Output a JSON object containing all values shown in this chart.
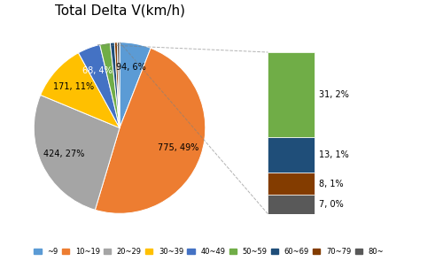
{
  "title": "Total Delta V(km/h)",
  "categories": [
    "~9",
    "10~19",
    "20~29",
    "30~39",
    "40~49",
    "50~59",
    "60~69",
    "70~79",
    "80~"
  ],
  "values": [
    94,
    775,
    424,
    171,
    68,
    31,
    13,
    8,
    7
  ],
  "pie_colors": [
    "#5B9BD5",
    "#ED7D31",
    "#A5A5A5",
    "#FFC000",
    "#4472C4",
    "#70AD47",
    "#1F4E79",
    "#833C00",
    "#595959"
  ],
  "bar_order_colors": [
    "#70AD47",
    "#1F4E79",
    "#833C00",
    "#595959"
  ],
  "background_color": "#FFFFFF",
  "title_fontsize": 11,
  "legend_fontsize": 6,
  "label_fontsize": 7
}
